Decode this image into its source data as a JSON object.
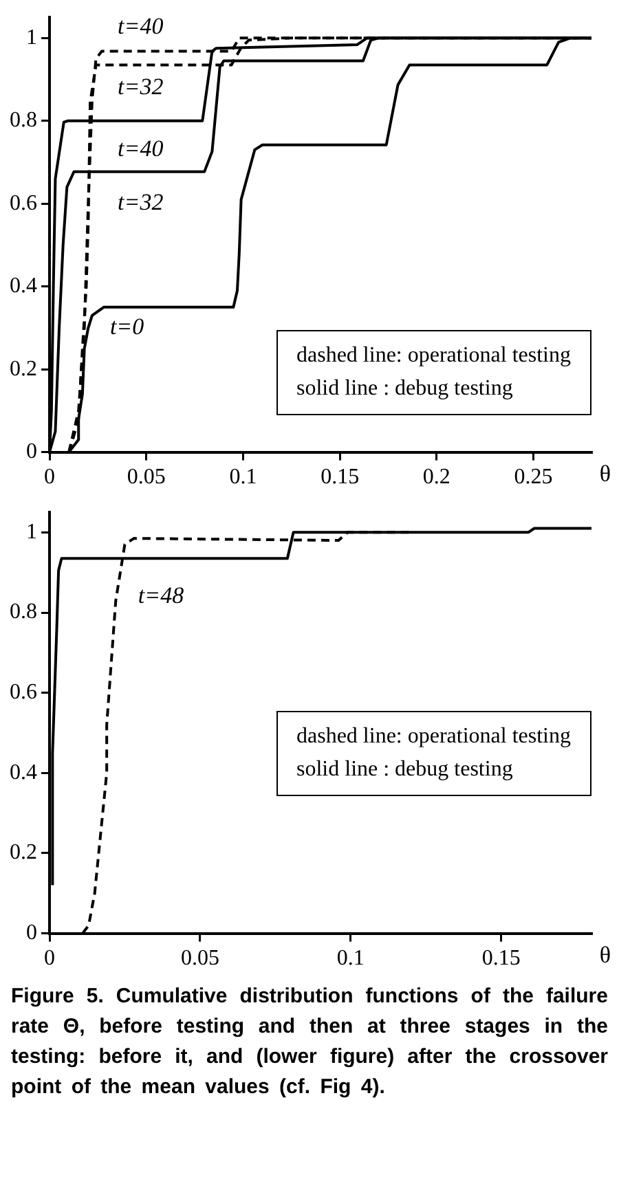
{
  "chart_data": [
    {
      "type": "line",
      "xlabel": "θ",
      "xlim": [
        0,
        0.28
      ],
      "ylim": [
        0,
        1.05
      ],
      "xticks": [
        0,
        0.05,
        0.1,
        0.15,
        0.2,
        0.25
      ],
      "yticks": [
        0,
        0.2,
        0.4,
        0.6,
        0.8,
        1
      ],
      "marker": "none",
      "series": [
        {
          "name": "t=0",
          "color": "#000000",
          "line_style": "solid",
          "x": [
            0.01,
            0.015,
            0.015,
            0.017,
            0.018,
            0.02,
            0.022,
            0.025,
            0.028,
            0.095,
            0.097,
            0.098,
            0.099,
            0.106,
            0.11,
            0.174,
            0.18,
            0.186,
            0.257,
            0.263,
            0.269,
            0.28
          ],
          "values": [
            0,
            0.03,
            0.08,
            0.14,
            0.25,
            0.3,
            0.33,
            0.34,
            0.35,
            0.35,
            0.39,
            0.48,
            0.61,
            0.73,
            0.742,
            0.742,
            0.887,
            0.935,
            0.935,
            0.99,
            1,
            1
          ]
        },
        {
          "name": "t=32",
          "color": "#000000",
          "line_style": "solid",
          "x": [
            0,
            0.003,
            0.005,
            0.007,
            0.009,
            0.0126,
            0.08,
            0.084,
            0.088,
            0.09,
            0.162,
            0.166,
            0.17,
            0.28
          ],
          "values": [
            0,
            0.05,
            0.3,
            0.5,
            0.64,
            0.677,
            0.677,
            0.726,
            0.93,
            0.945,
            0.945,
            0.995,
            1,
            1
          ]
        },
        {
          "name": "t=40",
          "color": "#000000",
          "line_style": "solid",
          "x": [
            0,
            0.001,
            0.002,
            0.003,
            0.0074,
            0.0096,
            0.079,
            0.084,
            0.086,
            0.159,
            0.164,
            0.28
          ],
          "values": [
            0,
            0.1,
            0.4,
            0.66,
            0.797,
            0.8,
            0.8,
            0.968,
            0.975,
            0.984,
            1,
            1
          ]
        },
        {
          "name": "t=32",
          "color": "#000000",
          "line_style": "dashed",
          "x": [
            0.01,
            0.012,
            0.015,
            0.017,
            0.019,
            0.02,
            0.021,
            0.024,
            0.094,
            0.099,
            0.103,
            0.125,
            0.28
          ],
          "values": [
            0,
            0.03,
            0.08,
            0.25,
            0.4,
            0.55,
            0.845,
            0.935,
            0.935,
            0.977,
            0.995,
            1,
            1
          ]
        },
        {
          "name": "t=40",
          "color": "#000000",
          "line_style": "dashed",
          "x": [
            0.01,
            0.015,
            0.018,
            0.02,
            0.022,
            0.024,
            0.027,
            0.094,
            0.098,
            0.28
          ],
          "values": [
            0,
            0.1,
            0.3,
            0.6,
            0.85,
            0.95,
            0.968,
            0.968,
            1,
            1
          ]
        }
      ],
      "annotations": [
        "dashed line:  operational testing",
        "solid line :  debug testing"
      ]
    },
    {
      "type": "line",
      "xlabel": "θ",
      "xlim": [
        0,
        0.18
      ],
      "ylim": [
        0,
        1.05
      ],
      "xticks": [
        0,
        0.05,
        0.1,
        0.15
      ],
      "yticks": [
        0,
        0.2,
        0.4,
        0.6,
        0.8,
        1
      ],
      "marker": "none",
      "title": "Figure 5. Cumulative distribution functions of the failure rate Θ, before testing and then at three stages in the testing: before it, and (lower figure) after the crossover point of the mean values (cf. Fig 4).",
      "series": [
        {
          "color": "#000000",
          "line_style": "solid",
          "x": [
            0.001,
            0.001,
            0.0024,
            0.003,
            0.004,
            0.079,
            0.081,
            0.159,
            0.161,
            0.18
          ],
          "values": [
            0.12,
            0.45,
            0.76,
            0.905,
            0.935,
            0.935,
            1.0,
            1.0,
            1.01,
            1.01
          ]
        },
        {
          "name": "t=48",
          "color": "#000000",
          "line_style": "dashed",
          "x": [
            0.011,
            0.013,
            0.015,
            0.017,
            0.019,
            0.019,
            0.022,
            0.025,
            0.028,
            0.096,
            0.099,
            0.12
          ],
          "values": [
            0,
            0.02,
            0.1,
            0.25,
            0.4,
            0.52,
            0.83,
            0.97,
            0.985,
            0.98,
            1.0,
            1.0
          ]
        }
      ],
      "annotations": [
        "dashed line:  operational testing",
        "solid line :  debug testing"
      ]
    }
  ]
}
